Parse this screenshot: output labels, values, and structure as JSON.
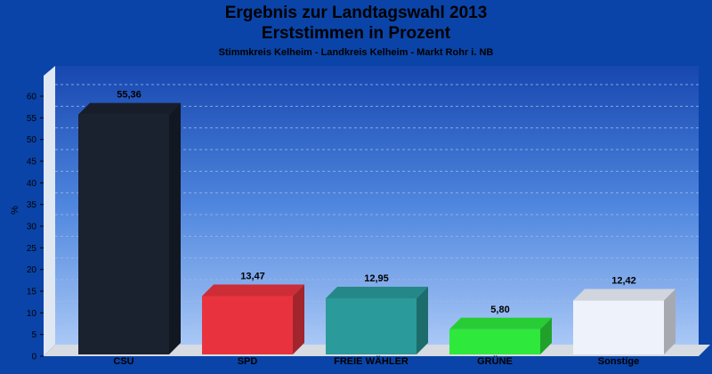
{
  "chart_data": {
    "type": "bar",
    "title": "Ergebnis zur Landtagswahl 2013",
    "subtitle": "Erststimmen in Prozent",
    "caption": "Stimmkreis Kelheim - Landkreis Kelheim - Markt Rohr i. NB",
    "ylabel": "%",
    "xlabel": "",
    "ylim": [
      0,
      60
    ],
    "yticks": [
      "0",
      "5",
      "10",
      "15",
      "20",
      "25",
      "30",
      "35",
      "40",
      "45",
      "50",
      "55",
      "60"
    ],
    "grid": true,
    "categories": [
      "CSU",
      "SPD",
      "FREIE WÄHLER",
      "GRÜNE",
      "Sonstige"
    ],
    "values": [
      55.36,
      13.47,
      12.95,
      5.8,
      12.42
    ],
    "value_labels": [
      "55,36",
      "13,47",
      "12,95",
      "5,80",
      "12,42"
    ],
    "colors": {
      "CSU": "#1a2230",
      "SPD": "#e8333f",
      "FREIE WÄHLER": "#2a9a9a",
      "GRÜNE": "#2ee83c",
      "Sonstige": "#eef2fb"
    }
  }
}
